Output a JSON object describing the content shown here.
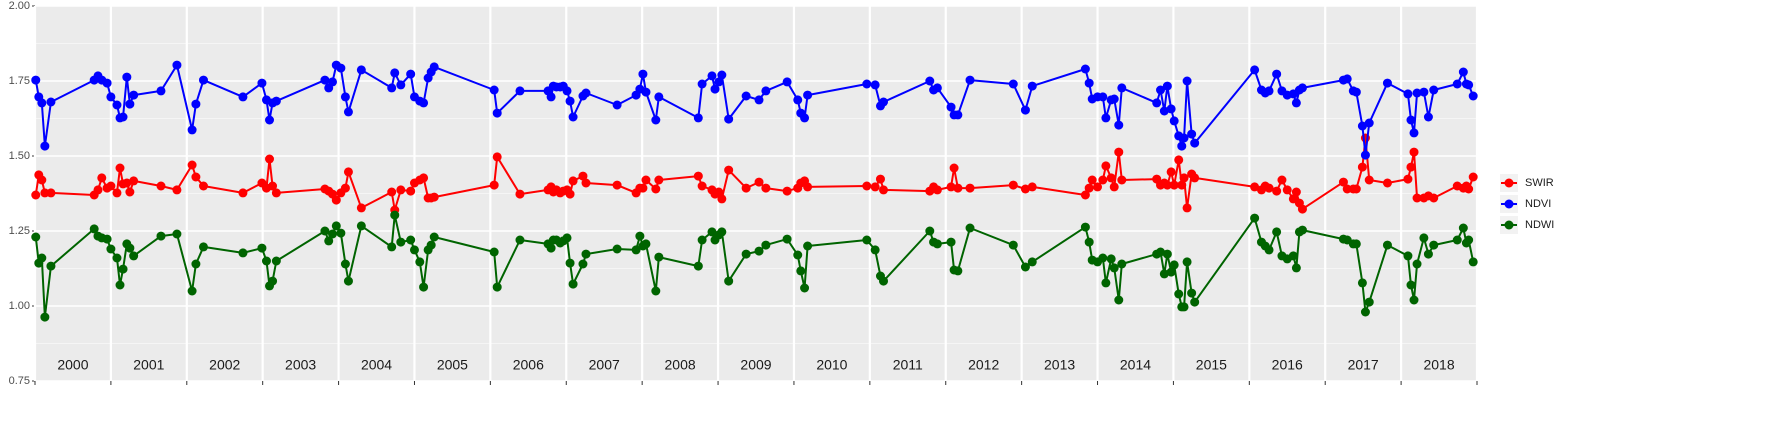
{
  "chart_data": {
    "type": "line",
    "x": [
      2000.01,
      2000.05,
      2000.09,
      2000.13,
      2000.21,
      2000.78,
      2000.83,
      2000.88,
      2000.95,
      2001.0,
      2001.08,
      2001.12,
      2001.16,
      2001.21,
      2001.25,
      2001.3,
      2001.66,
      2001.87,
      2002.07,
      2002.12,
      2002.22,
      2002.74,
      2002.99,
      2003.05,
      2003.09,
      2003.13,
      2003.18,
      2003.82,
      2003.87,
      2003.92,
      2003.97,
      2004.03,
      2004.09,
      2004.13,
      2004.3,
      2004.7,
      2004.74,
      2004.82,
      2004.95,
      2005.0,
      2005.07,
      2005.12,
      2005.18,
      2005.22,
      2005.26,
      2006.05,
      2006.09,
      2006.39,
      2006.76,
      2006.8,
      2006.83,
      2006.87,
      2006.92,
      2006.96,
      2007.01,
      2007.05,
      2007.09,
      2007.22,
      2007.26,
      2007.67,
      2007.92,
      2007.97,
      2008.01,
      2008.05,
      2008.18,
      2008.22,
      2008.74,
      2008.79,
      2008.92,
      2008.96,
      2009.01,
      2009.05,
      2009.14,
      2009.37,
      2009.54,
      2009.63,
      2009.91,
      2010.05,
      2010.09,
      2010.14,
      2010.18,
      2010.96,
      2011.07,
      2011.14,
      2011.18,
      2011.79,
      2011.84,
      2011.89,
      2012.07,
      2012.11,
      2012.16,
      2012.32,
      2012.89,
      2013.05,
      2013.14,
      2013.84,
      2013.89,
      2013.93,
      2014.0,
      2014.07,
      2014.11,
      2014.18,
      2014.22,
      2014.28,
      2014.32,
      2014.78,
      2014.83,
      2014.88,
      2014.92,
      2014.97,
      2015.01,
      2015.07,
      2015.11,
      2015.14,
      2015.18,
      2015.24,
      2015.28,
      2016.07,
      2016.16,
      2016.21,
      2016.26,
      2016.36,
      2016.43,
      2016.5,
      2016.58,
      2016.62,
      2016.66,
      2016.7,
      2017.24,
      2017.29,
      2017.37,
      2017.41,
      2017.49,
      2017.53,
      2017.58,
      2017.82,
      2018.09,
      2018.13,
      2018.17,
      2018.21,
      2018.3,
      2018.36,
      2018.43,
      2018.74,
      2018.82,
      2018.86,
      2018.89,
      2018.95
    ],
    "series": [
      {
        "name": "SWIR",
        "color": "#ff0000",
        "values": [
          1.37,
          1.437,
          1.42,
          1.377,
          1.377,
          1.37,
          1.387,
          1.427,
          1.393,
          1.4,
          1.377,
          1.46,
          1.407,
          1.41,
          1.38,
          1.417,
          1.4,
          1.387,
          1.47,
          1.43,
          1.4,
          1.377,
          1.41,
          1.393,
          1.49,
          1.4,
          1.377,
          1.39,
          1.383,
          1.373,
          1.353,
          1.377,
          1.393,
          1.447,
          1.327,
          1.38,
          1.32,
          1.387,
          1.383,
          1.41,
          1.42,
          1.427,
          1.36,
          1.36,
          1.363,
          1.403,
          1.497,
          1.373,
          1.387,
          1.397,
          1.38,
          1.387,
          1.377,
          1.383,
          1.387,
          1.373,
          1.417,
          1.433,
          1.41,
          1.403,
          1.377,
          1.393,
          1.393,
          1.42,
          1.39,
          1.42,
          1.433,
          1.4,
          1.387,
          1.373,
          1.38,
          1.357,
          1.453,
          1.393,
          1.413,
          1.393,
          1.383,
          1.393,
          1.41,
          1.417,
          1.397,
          1.4,
          1.397,
          1.423,
          1.387,
          1.383,
          1.397,
          1.387,
          1.397,
          1.46,
          1.393,
          1.393,
          1.403,
          1.39,
          1.397,
          1.37,
          1.393,
          1.42,
          1.397,
          1.42,
          1.467,
          1.427,
          1.397,
          1.513,
          1.42,
          1.423,
          1.403,
          1.41,
          1.403,
          1.447,
          1.403,
          1.487,
          1.403,
          1.427,
          1.327,
          1.44,
          1.427,
          1.397,
          1.387,
          1.4,
          1.393,
          1.383,
          1.42,
          1.387,
          1.357,
          1.38,
          1.343,
          1.323,
          1.413,
          1.39,
          1.39,
          1.39,
          1.463,
          1.56,
          1.42,
          1.41,
          1.423,
          1.463,
          1.513,
          1.36,
          1.36,
          1.367,
          1.36,
          1.4,
          1.393,
          1.4,
          1.39,
          1.43
        ]
      },
      {
        "name": "NDVI",
        "color": "#0000ff",
        "values": [
          1.753,
          1.697,
          1.677,
          1.533,
          1.68,
          1.753,
          1.767,
          1.753,
          1.743,
          1.697,
          1.67,
          1.627,
          1.63,
          1.763,
          1.673,
          1.703,
          1.717,
          1.803,
          1.587,
          1.673,
          1.753,
          1.697,
          1.743,
          1.687,
          1.62,
          1.677,
          1.683,
          1.753,
          1.727,
          1.747,
          1.803,
          1.793,
          1.697,
          1.647,
          1.787,
          1.727,
          1.777,
          1.737,
          1.773,
          1.697,
          1.683,
          1.677,
          1.76,
          1.78,
          1.797,
          1.72,
          1.643,
          1.717,
          1.717,
          1.697,
          1.733,
          1.73,
          1.73,
          1.733,
          1.717,
          1.683,
          1.63,
          1.7,
          1.71,
          1.67,
          1.703,
          1.723,
          1.773,
          1.713,
          1.62,
          1.697,
          1.627,
          1.74,
          1.767,
          1.723,
          1.747,
          1.77,
          1.623,
          1.7,
          1.687,
          1.717,
          1.747,
          1.687,
          1.643,
          1.627,
          1.703,
          1.74,
          1.737,
          1.667,
          1.68,
          1.75,
          1.72,
          1.727,
          1.663,
          1.637,
          1.637,
          1.753,
          1.74,
          1.653,
          1.733,
          1.79,
          1.743,
          1.69,
          1.697,
          1.697,
          1.627,
          1.687,
          1.69,
          1.603,
          1.727,
          1.677,
          1.72,
          1.65,
          1.733,
          1.657,
          1.617,
          1.567,
          1.533,
          1.56,
          1.75,
          1.573,
          1.543,
          1.787,
          1.72,
          1.71,
          1.717,
          1.773,
          1.717,
          1.703,
          1.707,
          1.677,
          1.72,
          1.727,
          1.753,
          1.757,
          1.717,
          1.713,
          1.6,
          1.503,
          1.61,
          1.743,
          1.707,
          1.62,
          1.577,
          1.71,
          1.713,
          1.63,
          1.72,
          1.74,
          1.78,
          1.74,
          1.737,
          1.7
        ]
      },
      {
        "name": "NDWI",
        "color": "#006400",
        "values": [
          1.23,
          1.143,
          1.16,
          0.963,
          1.133,
          1.257,
          1.233,
          1.227,
          1.223,
          1.19,
          1.16,
          1.07,
          1.123,
          1.207,
          1.193,
          1.167,
          1.233,
          1.24,
          1.05,
          1.14,
          1.197,
          1.177,
          1.193,
          1.15,
          1.067,
          1.083,
          1.15,
          1.25,
          1.217,
          1.24,
          1.267,
          1.243,
          1.14,
          1.083,
          1.267,
          1.197,
          1.303,
          1.213,
          1.22,
          1.187,
          1.147,
          1.063,
          1.187,
          1.203,
          1.23,
          1.18,
          1.063,
          1.22,
          1.207,
          1.193,
          1.22,
          1.22,
          1.21,
          1.217,
          1.227,
          1.143,
          1.073,
          1.14,
          1.173,
          1.19,
          1.187,
          1.233,
          1.2,
          1.207,
          1.05,
          1.163,
          1.133,
          1.22,
          1.247,
          1.22,
          1.237,
          1.247,
          1.083,
          1.173,
          1.183,
          1.203,
          1.223,
          1.17,
          1.117,
          1.06,
          1.2,
          1.22,
          1.187,
          1.1,
          1.083,
          1.25,
          1.213,
          1.207,
          1.213,
          1.12,
          1.117,
          1.26,
          1.203,
          1.13,
          1.147,
          1.263,
          1.213,
          1.153,
          1.147,
          1.16,
          1.077,
          1.157,
          1.127,
          1.02,
          1.14,
          1.173,
          1.18,
          1.107,
          1.173,
          1.113,
          1.137,
          1.04,
          0.997,
          0.997,
          1.147,
          1.043,
          1.013,
          1.293,
          1.213,
          1.2,
          1.187,
          1.247,
          1.167,
          1.157,
          1.167,
          1.127,
          1.247,
          1.253,
          1.223,
          1.22,
          1.207,
          1.207,
          1.077,
          0.98,
          1.013,
          1.203,
          1.167,
          1.07,
          1.02,
          1.14,
          1.227,
          1.173,
          1.203,
          1.22,
          1.26,
          1.21,
          1.22,
          1.147
        ]
      }
    ],
    "categories": [
      "2000",
      "2001",
      "2002",
      "2003",
      "2004",
      "2005",
      "2006",
      "2007",
      "2008",
      "2009",
      "2010",
      "2011",
      "2012",
      "2013",
      "2014",
      "2015",
      "2016",
      "2017",
      "2018"
    ],
    "xlim": [
      2000,
      2019
    ],
    "xticks": [
      2000,
      2001,
      2002,
      2003,
      2004,
      2005,
      2006,
      2007,
      2008,
      2009,
      2010,
      2011,
      2012,
      2013,
      2014,
      2015,
      2016,
      2017,
      2018,
      2019
    ],
    "ylim": [
      0.75,
      2.0
    ],
    "yticks": [
      {
        "value": 0.75,
        "label": "0.75"
      },
      {
        "value": 1.0,
        "label": "1.00"
      },
      {
        "value": 1.25,
        "label": "1.25"
      },
      {
        "value": 1.5,
        "label": "1.50"
      },
      {
        "value": 1.75,
        "label": "1.75"
      },
      {
        "value": 2.0,
        "label": "2.00"
      }
    ],
    "grid": true,
    "legend": "right"
  }
}
